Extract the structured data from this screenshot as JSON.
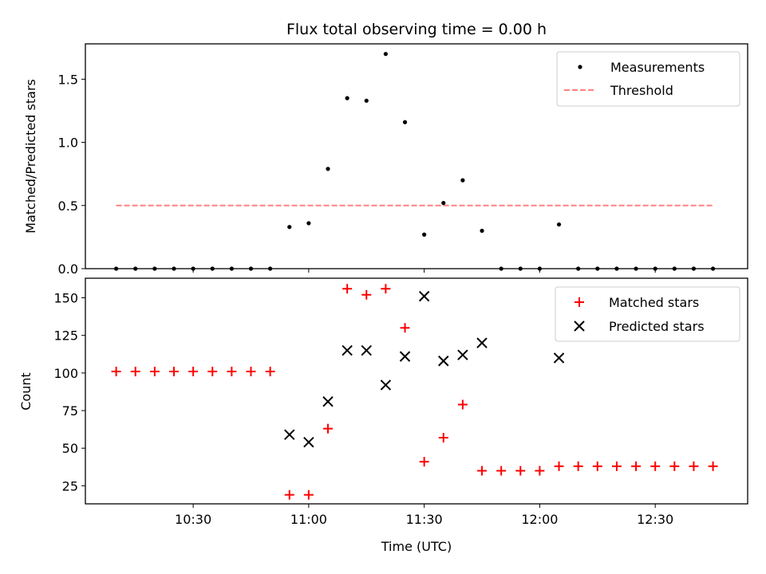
{
  "chart_data": [
    {
      "type": "scatter",
      "title": "Flux total observing time = 0.00 h",
      "xlabel": "",
      "ylabel": "Matched/Predicted stars",
      "ylim": [
        0,
        1.78
      ],
      "yticks": [
        {
          "value": 0.0,
          "label": "0.0"
        },
        {
          "value": 0.5,
          "label": "0.5"
        },
        {
          "value": 1.0,
          "label": "1.0"
        },
        {
          "value": 1.5,
          "label": "1.5"
        }
      ],
      "grid": false,
      "legend_position": "top-right",
      "series": [
        {
          "name": "Measurements",
          "marker": "dot",
          "color": "#000000",
          "x": [
            "10:10",
            "10:15",
            "10:20",
            "10:25",
            "10:30",
            "10:35",
            "10:40",
            "10:45",
            "10:50",
            "10:55",
            "11:00",
            "11:05",
            "11:10",
            "11:15",
            "11:20",
            "11:25",
            "11:30",
            "11:35",
            "11:40",
            "11:45",
            "11:50",
            "11:55",
            "12:00",
            "12:05",
            "12:10",
            "12:15",
            "12:20",
            "12:25",
            "12:30",
            "12:35",
            "12:40",
            "12:45"
          ],
          "y": [
            0,
            0,
            0,
            0,
            0,
            0,
            0,
            0,
            0,
            0.33,
            0.36,
            0.79,
            1.35,
            1.33,
            1.7,
            1.16,
            0.27,
            0.52,
            0.7,
            0.3,
            0,
            0,
            0,
            0.35,
            0,
            0,
            0,
            0,
            0,
            0,
            0,
            0
          ]
        },
        {
          "name": "Threshold",
          "marker": "dashed-line",
          "color": "#ff8080",
          "x": [
            "10:10",
            "12:45"
          ],
          "y": [
            0.5,
            0.5
          ]
        }
      ]
    },
    {
      "type": "scatter",
      "title": "",
      "xlabel": "Time (UTC)",
      "ylabel": "Count",
      "xlim": [
        "10:02",
        "12:54"
      ],
      "ylim": [
        13,
        163
      ],
      "xticks": [
        {
          "value": "10:30",
          "label": "10:30"
        },
        {
          "value": "11:00",
          "label": "11:00"
        },
        {
          "value": "11:30",
          "label": "11:30"
        },
        {
          "value": "12:00",
          "label": "12:00"
        },
        {
          "value": "12:30",
          "label": "12:30"
        }
      ],
      "yticks": [
        {
          "value": 25,
          "label": "25"
        },
        {
          "value": 50,
          "label": "50"
        },
        {
          "value": 75,
          "label": "75"
        },
        {
          "value": 100,
          "label": "100"
        },
        {
          "value": 125,
          "label": "125"
        },
        {
          "value": 150,
          "label": "150"
        }
      ],
      "grid": false,
      "legend_position": "top-right",
      "series": [
        {
          "name": "Matched stars",
          "marker": "plus",
          "color": "#ff0000",
          "x": [
            "10:10",
            "10:15",
            "10:20",
            "10:25",
            "10:30",
            "10:35",
            "10:40",
            "10:45",
            "10:50",
            "10:55",
            "11:00",
            "11:05",
            "11:10",
            "11:15",
            "11:20",
            "11:25",
            "11:30",
            "11:35",
            "11:40",
            "11:45",
            "11:50",
            "11:55",
            "12:00",
            "12:05",
            "12:10",
            "12:15",
            "12:20",
            "12:25",
            "12:30",
            "12:35",
            "12:40",
            "12:45"
          ],
          "y": [
            101,
            101,
            101,
            101,
            101,
            101,
            101,
            101,
            101,
            19,
            19,
            63,
            156,
            152,
            156,
            130,
            41,
            57,
            79,
            35,
            35,
            35,
            35,
            38,
            38,
            38,
            38,
            38,
            38,
            38,
            38,
            38
          ]
        },
        {
          "name": "Predicted stars",
          "marker": "x",
          "color": "#000000",
          "x": [
            "10:55",
            "11:00",
            "11:05",
            "11:10",
            "11:15",
            "11:20",
            "11:25",
            "11:30",
            "11:35",
            "11:40",
            "11:45",
            "12:05"
          ],
          "y": [
            59,
            54,
            81,
            115,
            115,
            92,
            111,
            151,
            108,
            112,
            120,
            110
          ]
        }
      ]
    }
  ]
}
